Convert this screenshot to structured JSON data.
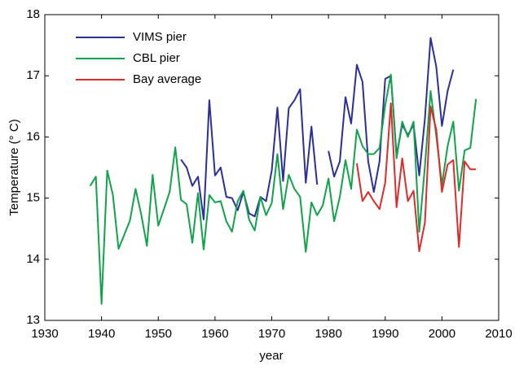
{
  "chart_data": {
    "type": "line",
    "xlabel": "year",
    "ylabel": "Temperature (° C)",
    "x": [
      1938,
      1939,
      1940,
      1941,
      1942,
      1943,
      1944,
      1945,
      1946,
      1947,
      1948,
      1949,
      1950,
      1951,
      1952,
      1953,
      1954,
      1955,
      1956,
      1957,
      1958,
      1959,
      1960,
      1961,
      1962,
      1963,
      1964,
      1965,
      1966,
      1967,
      1968,
      1969,
      1970,
      1971,
      1972,
      1973,
      1974,
      1975,
      1976,
      1977,
      1978,
      1979,
      1980,
      1981,
      1982,
      1983,
      1984,
      1985,
      1986,
      1987,
      1988,
      1989,
      1990,
      1991,
      1992,
      1993,
      1994,
      1995,
      1996,
      1997,
      1998,
      1999,
      2000,
      2001,
      2002,
      2003,
      2004,
      2005,
      2006
    ],
    "series": [
      {
        "name": "VIMS pier",
        "color": "#2b2f9a",
        "values": [
          null,
          null,
          null,
          null,
          null,
          null,
          null,
          null,
          null,
          null,
          null,
          null,
          null,
          null,
          null,
          null,
          15.63,
          15.5,
          15.2,
          15.35,
          14.65,
          16.6,
          15.37,
          15.5,
          15.02,
          15.0,
          14.8,
          15.1,
          14.75,
          14.7,
          15.02,
          14.95,
          15.45,
          16.48,
          15.28,
          16.47,
          16.6,
          16.78,
          15.25,
          16.17,
          15.22,
          null,
          15.77,
          15.35,
          15.6,
          16.65,
          16.22,
          17.18,
          16.9,
          15.6,
          15.1,
          15.6,
          16.95,
          17.0,
          15.7,
          16.2,
          16.03,
          16.2,
          15.37,
          16.3,
          17.62,
          17.15,
          16.18,
          16.75,
          17.1,
          null,
          null,
          null,
          null
        ]
      },
      {
        "name": "CBL pier",
        "color": "#10a44a",
        "values": [
          15.2,
          15.35,
          13.27,
          15.45,
          15.05,
          14.17,
          14.4,
          14.63,
          15.15,
          14.73,
          14.22,
          15.38,
          14.55,
          14.82,
          15.1,
          15.83,
          14.97,
          14.9,
          14.27,
          15.08,
          14.16,
          15.05,
          14.93,
          14.95,
          14.62,
          14.45,
          14.95,
          15.12,
          14.65,
          14.47,
          15.02,
          14.72,
          14.92,
          15.72,
          14.82,
          15.38,
          15.15,
          15.02,
          14.12,
          14.93,
          14.72,
          14.88,
          15.32,
          14.62,
          15.02,
          15.62,
          15.15,
          16.12,
          15.85,
          15.72,
          15.72,
          15.82,
          16.52,
          17.02,
          15.65,
          16.25,
          16.0,
          16.25,
          14.45,
          15.52,
          16.75,
          16.02,
          15.22,
          15.85,
          16.25,
          15.12,
          15.78,
          15.82,
          16.62
        ]
      },
      {
        "name": "Bay average",
        "color": "#e02a2a",
        "values": [
          null,
          null,
          null,
          null,
          null,
          null,
          null,
          null,
          null,
          null,
          null,
          null,
          null,
          null,
          null,
          null,
          null,
          null,
          null,
          null,
          null,
          null,
          null,
          null,
          null,
          null,
          null,
          null,
          null,
          null,
          null,
          null,
          null,
          null,
          null,
          null,
          null,
          null,
          null,
          null,
          null,
          null,
          null,
          null,
          null,
          null,
          null,
          15.57,
          14.95,
          15.1,
          14.95,
          14.82,
          15.25,
          16.55,
          14.85,
          15.65,
          14.95,
          15.12,
          14.13,
          14.6,
          16.5,
          16.12,
          15.1,
          15.55,
          15.62,
          14.2,
          15.6,
          15.47,
          15.47
        ]
      }
    ],
    "xlim": [
      1930,
      2010
    ],
    "xticks": [
      1930,
      1940,
      1950,
      1960,
      1970,
      1980,
      1990,
      2000,
      2010
    ],
    "ylim": [
      13,
      18
    ],
    "yticks": [
      13,
      14,
      15,
      16,
      17,
      18
    ],
    "grid": false,
    "legend": "upper left"
  }
}
